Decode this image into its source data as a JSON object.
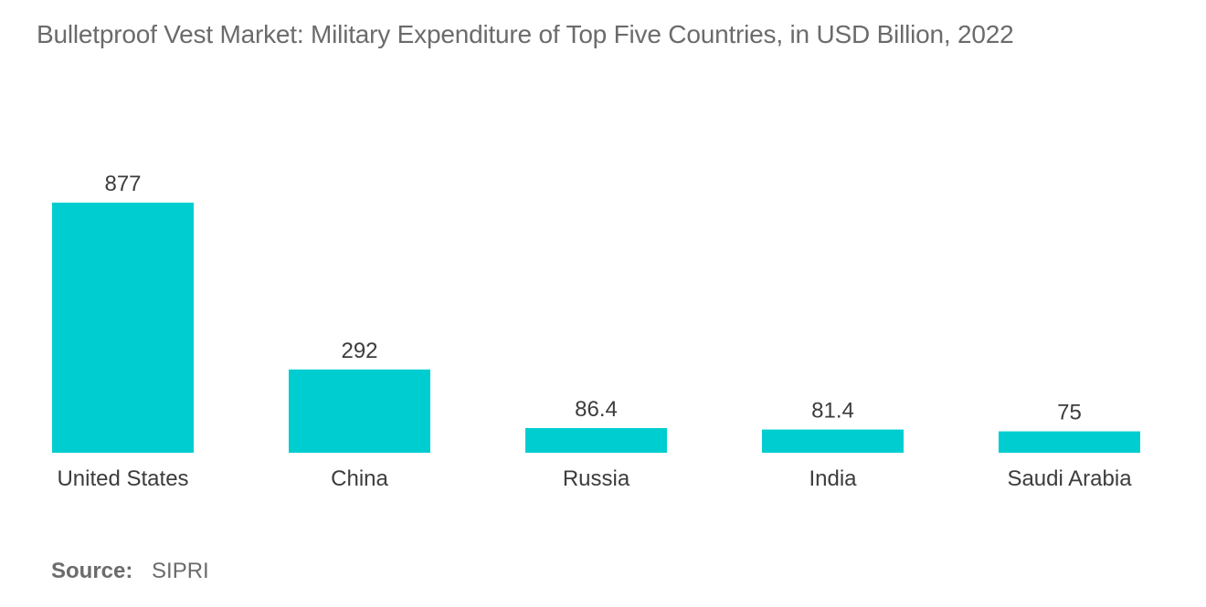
{
  "title": "Bulletproof Vest Market: Military Expenditure of Top Five Countries, in USD Billion, 2022",
  "source": {
    "label": "Source:",
    "value": "SIPRI"
  },
  "colors": {
    "bar": "#00cdd0",
    "text": "#3c3c3c",
    "title": "#6b6b6b"
  },
  "chart_data": {
    "type": "bar",
    "categories": [
      "United States",
      "China",
      "Russia",
      "India",
      "Saudi Arabia"
    ],
    "values": [
      877,
      292,
      86.4,
      81.4,
      75
    ],
    "value_labels": [
      "877",
      "292",
      "86.4",
      "81.4",
      "75"
    ],
    "xlabel": "",
    "ylabel": "",
    "ylim": [
      0,
      877
    ],
    "grid": false,
    "legend": "none"
  }
}
